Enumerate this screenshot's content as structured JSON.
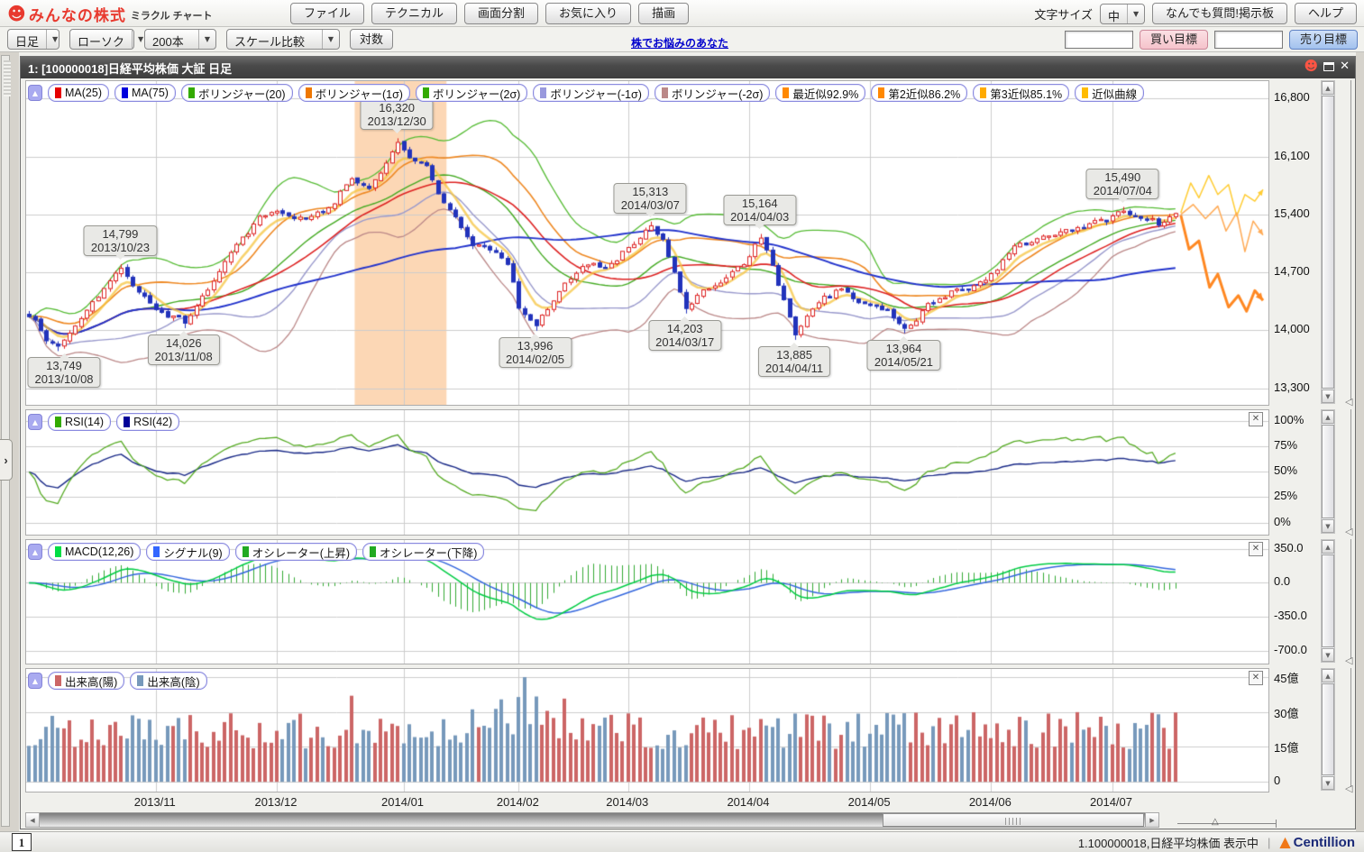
{
  "header": {
    "logo_main": "みんなの株式",
    "logo_sub": "ミラクル チャート",
    "menu_buttons": [
      "ファイル",
      "テクニカル",
      "画面分割",
      "お気に入り",
      "描画"
    ],
    "font_size_label": "文字サイズ",
    "font_size_value": "中",
    "qa_button": "なんでも質問!掲示板",
    "help_button": "ヘルプ"
  },
  "toolbar": {
    "interval_dropdown": "日足",
    "style_dropdown": "ローソク",
    "bars_dropdown": "200本",
    "scale_dropdown": "スケール比較",
    "log_button": "対数",
    "promo_link": "株でお悩みのあなた",
    "buy_input_value": "",
    "sell_input_value": "",
    "buy_target_button": "買い目標",
    "sell_target_button": "売り目標"
  },
  "window": {
    "title": "1:  [100000018]日経平均株価 大証 日足"
  },
  "icons": {
    "mascot": "☻",
    "window_close": "✕",
    "dropdown_arrow": "▼",
    "collapse_arrow": "▲",
    "expand_arrow": "›",
    "scroll_up": "▲",
    "scroll_down": "▼",
    "scroll_left": "◀",
    "scroll_right": "▶",
    "slider_pointer_v": "◁",
    "slider_pointer_h": "△",
    "panel_close": "✕",
    "brand_triangle": "▲"
  },
  "panels": {
    "main": {
      "chips": [
        {
          "label": "MA(25)",
          "color": "#e60000"
        },
        {
          "label": "MA(75)",
          "color": "#0000dd"
        },
        {
          "label": "ボリンジャー(20)",
          "color": "#33aa00"
        },
        {
          "label": "ボリンジャー(1σ)",
          "color": "#ee7700"
        },
        {
          "label": "ボリンジャー(2σ)",
          "color": "#33aa00"
        },
        {
          "label": "ボリンジャー(-1σ)",
          "color": "#9999dd"
        },
        {
          "label": "ボリンジャー(-2σ)",
          "color": "#bb8888"
        },
        {
          "label": "最近似92.9%",
          "color": "#ff8800"
        },
        {
          "label": "第2近似86.2%",
          "color": "#ff8800"
        },
        {
          "label": "第3近似85.1%",
          "color": "#ffaa00"
        },
        {
          "label": "近似曲線",
          "color": "#ffbb00"
        }
      ],
      "y_labels": [
        "16,800",
        "16,100",
        "15,400",
        "14,700",
        "14,000",
        "13,300"
      ]
    },
    "rsi": {
      "chips": [
        {
          "label": "RSI(14)",
          "color": "#33aa00"
        },
        {
          "label": "RSI(42)",
          "color": "#000099"
        }
      ],
      "y_labels": [
        "100%",
        "75%",
        "50%",
        "25%",
        "0%"
      ]
    },
    "macd": {
      "chips": [
        {
          "label": "MACD(12,26)",
          "color": "#00dd44"
        },
        {
          "label": "シグナル(9)",
          "color": "#3366ff"
        },
        {
          "label": "オシレーター(上昇)",
          "color": "#22aa22"
        },
        {
          "label": "オシレーター(下降)",
          "color": "#22aa22"
        }
      ],
      "y_labels": [
        "350.0",
        "0.0",
        "-350.0",
        "-700.0"
      ]
    },
    "volume": {
      "chips": [
        {
          "label": "出来高(陽)",
          "color": "#cc6666"
        },
        {
          "label": "出来高(陰)",
          "color": "#7799bb"
        }
      ],
      "y_labels": [
        "45億",
        "30億",
        "15億",
        "0"
      ]
    }
  },
  "status_bar": {
    "tab": "1",
    "status_text": "1.100000018,日経平均株価 表示中",
    "separator": "|",
    "brand": "Centillion"
  },
  "chart_data": {
    "type": "candlestick",
    "title": "日経平均株価 大証 日足",
    "bars": 200,
    "price_anchors": [
      [
        0,
        14180
      ],
      [
        3,
        13900
      ],
      [
        5,
        13800
      ],
      [
        9,
        14150
      ],
      [
        13,
        14500
      ],
      [
        16,
        14760
      ],
      [
        19,
        14450
      ],
      [
        22,
        14250
      ],
      [
        25,
        14150
      ],
      [
        27,
        14100
      ],
      [
        30,
        14400
      ],
      [
        33,
        14700
      ],
      [
        36,
        15050
      ],
      [
        40,
        15350
      ],
      [
        43,
        15450
      ],
      [
        46,
        15350
      ],
      [
        50,
        15400
      ],
      [
        53,
        15550
      ],
      [
        56,
        15850
      ],
      [
        59,
        15700
      ],
      [
        62,
        16050
      ],
      [
        64,
        16280
      ],
      [
        66,
        16100
      ],
      [
        69,
        15950
      ],
      [
        71,
        15650
      ],
      [
        74,
        15350
      ],
      [
        77,
        15050
      ],
      [
        80,
        15000
      ],
      [
        83,
        14800
      ],
      [
        85,
        14300
      ],
      [
        87,
        14100
      ],
      [
        88,
        14050
      ],
      [
        90,
        14250
      ],
      [
        93,
        14550
      ],
      [
        96,
        14800
      ],
      [
        99,
        14750
      ],
      [
        102,
        14850
      ],
      [
        105,
        15050
      ],
      [
        108,
        15270
      ],
      [
        110,
        15100
      ],
      [
        112,
        14700
      ],
      [
        114,
        14250
      ],
      [
        116,
        14400
      ],
      [
        118,
        14500
      ],
      [
        121,
        14650
      ],
      [
        124,
        14800
      ],
      [
        127,
        15120
      ],
      [
        129,
        14800
      ],
      [
        131,
        14350
      ],
      [
        133,
        13950
      ],
      [
        135,
        14200
      ],
      [
        138,
        14400
      ],
      [
        141,
        14500
      ],
      [
        144,
        14350
      ],
      [
        146,
        14300
      ],
      [
        149,
        14250
      ],
      [
        152,
        14000
      ],
      [
        154,
        14150
      ],
      [
        157,
        14350
      ],
      [
        160,
        14450
      ],
      [
        163,
        14500
      ],
      [
        166,
        14600
      ],
      [
        169,
        14850
      ],
      [
        172,
        15050
      ],
      [
        175,
        15100
      ],
      [
        178,
        15150
      ],
      [
        181,
        15200
      ],
      [
        184,
        15300
      ],
      [
        187,
        15350
      ],
      [
        190,
        15430
      ],
      [
        193,
        15350
      ],
      [
        196,
        15300
      ],
      [
        199,
        15380
      ]
    ],
    "annotations": [
      {
        "price": "14,799",
        "date": "2013/10/23",
        "idx": 16,
        "value": 14799,
        "side": "above"
      },
      {
        "price": "13,749",
        "date": "2013/10/08",
        "idx": 5,
        "value": 13749,
        "side": "below"
      },
      {
        "price": "14,026",
        "date": "2013/11/08",
        "idx": 27,
        "value": 14026,
        "side": "below"
      },
      {
        "price": "16,320",
        "date": "2013/12/30",
        "idx": 64,
        "value": 16320,
        "side": "above"
      },
      {
        "price": "13,996",
        "date": "2014/02/05",
        "idx": 88,
        "value": 13996,
        "side": "below"
      },
      {
        "price": "15,313",
        "date": "2014/03/07",
        "idx": 108,
        "value": 15313,
        "side": "above"
      },
      {
        "price": "14,203",
        "date": "2014/03/17",
        "idx": 114,
        "value": 14203,
        "side": "below"
      },
      {
        "price": "15,164",
        "date": "2014/04/03",
        "idx": 127,
        "value": 15164,
        "side": "above"
      },
      {
        "price": "13,885",
        "date": "2014/04/11",
        "idx": 133,
        "value": 13885,
        "side": "below"
      },
      {
        "price": "13,964",
        "date": "2014/05/21",
        "idx": 152,
        "value": 13964,
        "side": "below"
      },
      {
        "price": "15,490",
        "date": "2014/07/04",
        "idx": 190,
        "value": 15490,
        "side": "above"
      }
    ],
    "highlight_band": {
      "start": 57,
      "end": 72,
      "color": "rgba(248,166,90,0.45)"
    },
    "main_axis": {
      "ticks": [
        16800,
        16100,
        15400,
        14700,
        14000,
        13300
      ],
      "top_value": 17010,
      "bottom_value": 13100
    },
    "rsi_axis": {
      "ticks": [
        100,
        75,
        50,
        25,
        0
      ],
      "top_value": 111,
      "bottom_value": -12
    },
    "macd_axis": {
      "ticks": [
        350,
        0,
        -350,
        -700
      ],
      "top_value": 443,
      "bottom_value": -835
    },
    "volume_axis": {
      "ticks": [
        45,
        30,
        15,
        0
      ],
      "unit": "億",
      "top_value": 48.5,
      "bottom_value": -4.2
    },
    "month_ticks": [
      [
        22,
        "2013/11"
      ],
      [
        43,
        "2013/12"
      ],
      [
        65,
        "2014/01"
      ],
      [
        85,
        "2014/02"
      ],
      [
        104,
        "2014/03"
      ],
      [
        125,
        "2014/04"
      ],
      [
        146,
        "2014/05"
      ],
      [
        167,
        "2014/06"
      ],
      [
        188,
        "2014/07"
      ]
    ],
    "line_colors": {
      "ma25": "#dd2222",
      "ma75": "#2233cc",
      "boll20": "#44aa22",
      "boll_p1": "#ee8822",
      "boll_p2": "#55bb33",
      "boll_m1": "#9999cc",
      "boll_m2": "#bb8888",
      "approx": "#f5c43f",
      "rsi14": "#55aa22",
      "rsi42": "#1a2a88",
      "macd": "#00cc44",
      "signal": "#3366dd",
      "hist": "#33aa33",
      "vol_up": "#cc6666",
      "vol_down": "#7799bb",
      "candle_up": "#dd2222",
      "candle_down": "#2233bb",
      "grid": "#cccccc"
    },
    "forecast": {
      "lines": [
        {
          "color": "#ffcc33",
          "width": 1.5,
          "points": [
            [
              0,
              15420
            ],
            [
              0.12,
              15780
            ],
            [
              0.22,
              15600
            ],
            [
              0.34,
              15870
            ],
            [
              0.45,
              15640
            ],
            [
              0.58,
              15760
            ],
            [
              0.68,
              15380
            ],
            [
              0.78,
              15640
            ],
            [
              0.9,
              15560
            ],
            [
              1,
              15700
            ]
          ]
        },
        {
          "color": "#ffaa55",
          "width": 1.5,
          "points": [
            [
              0,
              15400
            ],
            [
              0.15,
              15520
            ],
            [
              0.3,
              15350
            ],
            [
              0.45,
              15500
            ],
            [
              0.55,
              15200
            ],
            [
              0.68,
              15420
            ],
            [
              0.78,
              14950
            ],
            [
              0.88,
              15320
            ],
            [
              1,
              15150
            ]
          ]
        },
        {
          "color": "#ff8822",
          "width": 3,
          "points": [
            [
              0,
              15390
            ],
            [
              0.1,
              14980
            ],
            [
              0.22,
              15080
            ],
            [
              0.35,
              14520
            ],
            [
              0.45,
              14680
            ],
            [
              0.58,
              14280
            ],
            [
              0.7,
              14420
            ],
            [
              0.8,
              14230
            ],
            [
              0.9,
              14480
            ],
            [
              1,
              14360
            ]
          ]
        }
      ]
    }
  }
}
